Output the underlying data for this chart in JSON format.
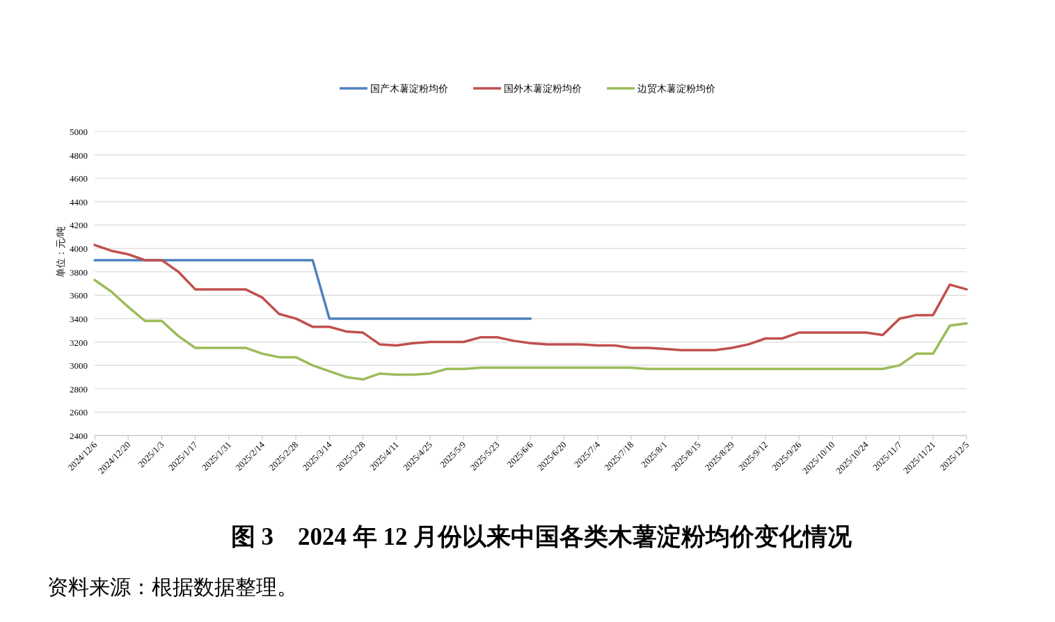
{
  "chart_data": {
    "type": "line",
    "title": "图 3　2024 年 12 月份以来中国各类木薯淀粉均价变化情况",
    "ylabel": "单位：元/吨",
    "annotations": [
      "资料来源：根据数据整理。"
    ],
    "x": [
      "2024-12-06",
      "2024-12-13",
      "2024-12-20",
      "2024-12-27",
      "2025-01-03",
      "2025-01-10",
      "2025-01-17",
      "2025-01-24",
      "2025-01-31",
      "2025-02-07",
      "2025-02-14",
      "2025-02-21",
      "2025-02-28",
      "2025-03-07",
      "2025-03-14",
      "2025-03-21",
      "2025-03-28",
      "2025-04-04",
      "2025-04-11",
      "2025-04-18",
      "2025-04-25",
      "2025-05-02",
      "2025-05-09",
      "2025-05-16",
      "2025-05-23",
      "2025-05-30",
      "2025-06-06",
      "2025-06-13",
      "2025-06-20",
      "2025-06-27",
      "2025-07-04",
      "2025-07-11",
      "2025-07-18",
      "2025-07-25",
      "2025-08-01",
      "2025-08-08",
      "2025-08-15",
      "2025-08-22",
      "2025-08-29",
      "2025-09-05",
      "2025-09-12",
      "2025-09-19",
      "2025-09-26",
      "2025-10-03",
      "2025-10-10",
      "2025-10-17",
      "2025-10-24",
      "2025-10-31",
      "2025-11-07",
      "2025-11-14",
      "2025-11-21",
      "2025-11-28",
      "2025-12-05"
    ],
    "series": [
      {
        "name": "国产木薯淀粉均价",
        "color": "#4f81bd",
        "values": [
          3900,
          3900,
          3900,
          3900,
          3900,
          3900,
          3900,
          3900,
          3900,
          3900,
          3900,
          3900,
          3900,
          3900,
          3400,
          3400,
          3400,
          3400,
          3400,
          3400,
          3400,
          3400,
          3400,
          3400,
          3400,
          3400,
          3400,
          null,
          null,
          null,
          null,
          null,
          null,
          null,
          null,
          null,
          null,
          null,
          null,
          null,
          null,
          null,
          null,
          null,
          null,
          null,
          null,
          null,
          null,
          null,
          null,
          null,
          null
        ]
      },
      {
        "name": "国外木薯淀粉均价",
        "color": "#c0504d",
        "values": [
          4030,
          3980,
          3950,
          3900,
          3900,
          3800,
          3650,
          3650,
          3650,
          3650,
          3580,
          3440,
          3400,
          3330,
          3330,
          3290,
          3280,
          3180,
          3170,
          3190,
          3200,
          3200,
          3200,
          3240,
          3240,
          3210,
          3190,
          3180,
          3180,
          3180,
          3170,
          3170,
          3150,
          3150,
          3140,
          3130,
          3130,
          3130,
          3150,
          3180,
          3230,
          3230,
          3280,
          3280,
          3280,
          3280,
          3280,
          3260,
          3400,
          3430,
          3430,
          3690,
          3650
        ]
      },
      {
        "name": "边贸木薯淀粉均价",
        "color": "#9bbb59",
        "values": [
          3730,
          3630,
          3500,
          3380,
          3380,
          3250,
          3150,
          3150,
          3150,
          3150,
          3100,
          3070,
          3070,
          3000,
          2950,
          2900,
          2880,
          2930,
          2920,
          2920,
          2930,
          2970,
          2970,
          2980,
          2980,
          2980,
          2980,
          2980,
          2980,
          2980,
          2980,
          2980,
          2980,
          2970,
          2970,
          2970,
          2970,
          2970,
          2970,
          2970,
          2970,
          2970,
          2970,
          2970,
          2970,
          2970,
          2970,
          2970,
          3000,
          3100,
          3100,
          3340,
          3360
        ]
      }
    ],
    "xlim": [
      "2024-12-06",
      "2025-12-05"
    ],
    "xticks": [
      {
        "value": "2024-12-06",
        "label": "2024/12/6"
      },
      {
        "value": "2024-12-20",
        "label": "2024/12/20"
      },
      {
        "value": "2025-01-03",
        "label": "2025/1/3"
      },
      {
        "value": "2025-01-17",
        "label": "2025/1/17"
      },
      {
        "value": "2025-01-31",
        "label": "2025/1/31"
      },
      {
        "value": "2025-02-14",
        "label": "2025/2/14"
      },
      {
        "value": "2025-02-28",
        "label": "2025/2/28"
      },
      {
        "value": "2025-03-14",
        "label": "2025/3/14"
      },
      {
        "value": "2025-03-28",
        "label": "2025/3/28"
      },
      {
        "value": "2025-04-11",
        "label": "2025/4/11"
      },
      {
        "value": "2025-04-25",
        "label": "2025/4/25"
      },
      {
        "value": "2025-05-09",
        "label": "2025/5/9"
      },
      {
        "value": "2025-05-23",
        "label": "2025/5/23"
      },
      {
        "value": "2025-06-06",
        "label": "2025/6/6"
      },
      {
        "value": "2025-06-20",
        "label": "2025/6/20"
      },
      {
        "value": "2025-07-04",
        "label": "2025/7/4"
      },
      {
        "value": "2025-07-18",
        "label": "2025/7/18"
      },
      {
        "value": "2025-08-01",
        "label": "2025/8/1"
      },
      {
        "value": "2025-08-15",
        "label": "2025/8/15"
      },
      {
        "value": "2025-08-29",
        "label": "2025/8/29"
      },
      {
        "value": "2025-09-12",
        "label": "2025/9/12"
      },
      {
        "value": "2025-09-26",
        "label": "2025/9/26"
      },
      {
        "value": "2025-10-10",
        "label": "2025/10/10"
      },
      {
        "value": "2025-10-24",
        "label": "2025/10/24"
      },
      {
        "value": "2025-11-07",
        "label": "2025/11/7"
      },
      {
        "value": "2025-11-21",
        "label": "2025/11/21"
      },
      {
        "value": "2025-12-05",
        "label": "2025/12/5"
      }
    ],
    "ylim": [
      2400,
      5000
    ],
    "yticks": [
      2400,
      2600,
      2800,
      3000,
      3200,
      3400,
      3600,
      3800,
      4000,
      4200,
      4400,
      4600,
      4800,
      5000
    ],
    "grid": "y",
    "legend": "top"
  }
}
